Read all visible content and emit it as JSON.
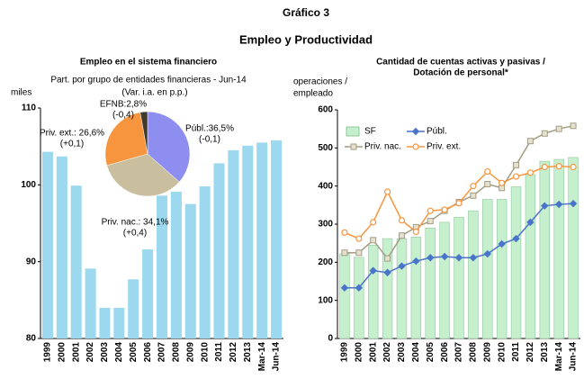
{
  "header": {
    "title": "Gráfico 3",
    "subtitle": "Empleo y Productividad"
  },
  "chart_data": [
    {
      "type": "bar",
      "title": "Empleo en el sistema financiero",
      "ylabel": "miles",
      "categories": [
        "1999",
        "2000",
        "2001",
        "2002",
        "2003",
        "2004",
        "2005",
        "2006",
        "2007",
        "2008",
        "2009",
        "2010",
        "2011",
        "2012",
        "2013",
        "Mar-14",
        "Jun-14"
      ],
      "values": [
        104.3,
        103.7,
        99.9,
        89.1,
        84.0,
        84.0,
        87.7,
        91.6,
        98.6,
        99.1,
        97.5,
        99.8,
        102.8,
        104.5,
        105.1,
        105.5,
        105.8
      ],
      "color": "#9dd9ee",
      "ylim": [
        80,
        110
      ],
      "yticks": [
        80,
        90,
        100,
        110
      ],
      "grid": false
    },
    {
      "type": "pie",
      "title": "Part. por grupo de entidades financieras - Jun-14",
      "subtitle": "(Var. i.a. en p.p.)",
      "values": [
        36.5,
        34.1,
        26.6,
        2.8
      ],
      "value_labels": [
        "Públ.:36,5%",
        "Priv. nac.: 34,1%",
        "Priv. ext.: 26,6%",
        "EFNB:2,8%"
      ],
      "changes": [
        -0.1,
        0.4,
        0.1,
        -0.4
      ],
      "change_labels": [
        "(-0,1)",
        "(+0,4)",
        "(+0,1)",
        "(-0,4)"
      ],
      "colors": [
        "#8e8ef0",
        "#c9bf9e",
        "#f7953f",
        "#3f3a2c"
      ]
    },
    {
      "type": "combo",
      "title": [
        "Cantidad de cuentas activas y pasivas  /",
        "Dotación de personal*"
      ],
      "ylabel": [
        "operaciones /",
        "empleado"
      ],
      "categories": [
        "1999",
        "2000",
        "2001",
        "2002",
        "2003",
        "2004",
        "2005",
        "2006",
        "2007",
        "2008",
        "2009",
        "2010",
        "2011",
        "2012",
        "2013",
        "Mar-14",
        "Jun-14"
      ],
      "ylim": [
        0,
        600
      ],
      "yticks": [
        0,
        100,
        200,
        300,
        400,
        500,
        600
      ],
      "grid": false,
      "series": [
        {
          "name": "SF",
          "type": "bar",
          "color": "#c6efce",
          "values": [
            222,
            213,
            245,
            262,
            262,
            266,
            290,
            305,
            318,
            335,
            365,
            365,
            398,
            430,
            465,
            470,
            475
          ]
        },
        {
          "name": "Públ.",
          "type": "line",
          "marker": "diamond",
          "color": "#4a74c9",
          "values": [
            133,
            133,
            178,
            173,
            190,
            203,
            212,
            215,
            212,
            212,
            222,
            248,
            262,
            305,
            348,
            352,
            354
          ]
        },
        {
          "name": "Priv. nac.",
          "type": "line",
          "marker": "square",
          "color": "#a39c83",
          "values": [
            225,
            225,
            258,
            210,
            270,
            292,
            308,
            335,
            358,
            375,
            405,
            395,
            455,
            518,
            538,
            550,
            558
          ]
        },
        {
          "name": "Priv. ext.",
          "type": "line",
          "marker": "circle",
          "color": "#f7953f",
          "values": [
            278,
            262,
            305,
            385,
            310,
            280,
            335,
            338,
            355,
            400,
            438,
            408,
            425,
            435,
            450,
            452,
            450
          ]
        }
      ]
    }
  ]
}
